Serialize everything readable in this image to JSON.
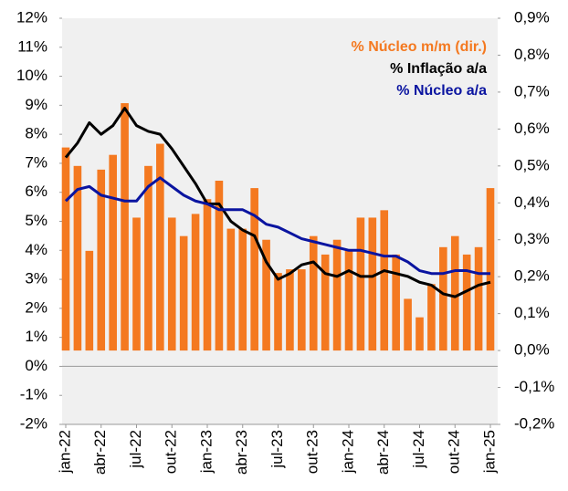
{
  "chart_data": {
    "type": "combo",
    "categories": [
      "jan-22",
      null,
      null,
      "abr-22",
      null,
      null,
      "jul-22",
      null,
      null,
      "out-22",
      null,
      null,
      "jan-23",
      null,
      null,
      "abr-23",
      null,
      null,
      "jul-23",
      null,
      null,
      "out-23",
      null,
      null,
      "jan-24",
      null,
      null,
      "abr-24",
      null,
      null,
      "jul-24",
      null,
      null,
      "out-24",
      null,
      null,
      "jan-25"
    ],
    "series": [
      {
        "name": "% Núcleo m/m (dir.)",
        "type": "bar",
        "axis": "y2",
        "color": "#f47920",
        "values": [
          0.55,
          0.5,
          0.27,
          0.49,
          0.53,
          0.67,
          0.36,
          0.5,
          0.56,
          0.36,
          0.31,
          0.37,
          0.41,
          0.46,
          0.33,
          0.33,
          0.44,
          0.3,
          0.21,
          0.22,
          0.22,
          0.31,
          0.26,
          0.3,
          0.27,
          0.36,
          0.36,
          0.38,
          0.26,
          0.14,
          0.09,
          0.18,
          0.28,
          0.31,
          0.26,
          0.28,
          0.44
        ]
      },
      {
        "name": "% Inflação a/a",
        "type": "line",
        "color": "#000000",
        "values": [
          7.2,
          7.7,
          8.4,
          8.0,
          8.3,
          8.9,
          8.3,
          8.1,
          8.0,
          7.5,
          6.9,
          6.3,
          5.6,
          5.6,
          5.0,
          4.7,
          4.5,
          3.6,
          3.0,
          3.2,
          3.5,
          3.6,
          3.2,
          3.1,
          3.3,
          3.1,
          3.1,
          3.3,
          3.2,
          3.1,
          2.9,
          2.8,
          2.5,
          2.4,
          2.6,
          2.8,
          2.9
        ]
      },
      {
        "name": "% Núcleo a/a",
        "type": "line",
        "color": "#0a14a0",
        "values": [
          5.7,
          6.1,
          6.2,
          5.9,
          5.8,
          5.7,
          5.7,
          6.2,
          6.5,
          6.2,
          5.9,
          5.7,
          5.6,
          5.4,
          5.4,
          5.4,
          5.2,
          4.9,
          4.8,
          4.6,
          4.4,
          4.3,
          4.2,
          4.1,
          4.0,
          4.0,
          3.9,
          3.8,
          3.8,
          3.6,
          3.3,
          3.2,
          3.2,
          3.3,
          3.3,
          3.2,
          3.2
        ]
      }
    ],
    "ylim": [
      -2,
      12
    ],
    "yticks": [
      {
        "value": -2,
        "label": "-2%"
      },
      {
        "value": -1,
        "label": "-1%"
      },
      {
        "value": 0,
        "label": "0%"
      },
      {
        "value": 1,
        "label": "1%"
      },
      {
        "value": 2,
        "label": "2%"
      },
      {
        "value": 3,
        "label": "3%"
      },
      {
        "value": 4,
        "label": "4%"
      },
      {
        "value": 5,
        "label": "5%"
      },
      {
        "value": 6,
        "label": "6%"
      },
      {
        "value": 7,
        "label": "7%"
      },
      {
        "value": 8,
        "label": "8%"
      },
      {
        "value": 9,
        "label": "9%"
      },
      {
        "value": 10,
        "label": "10%"
      },
      {
        "value": 11,
        "label": "11%"
      },
      {
        "value": 12,
        "label": "12%"
      }
    ],
    "y2lim": [
      -0.2,
      0.9
    ],
    "y2ticks": [
      {
        "value": -0.2,
        "label": "-0,2%"
      },
      {
        "value": -0.1,
        "label": "-0,1%"
      },
      {
        "value": 0,
        "label": "0,0%"
      },
      {
        "value": 0.1,
        "label": "0,1%"
      },
      {
        "value": 0.2,
        "label": "0,2%"
      },
      {
        "value": 0.3,
        "label": "0,3%"
      },
      {
        "value": 0.4,
        "label": "0,4%"
      },
      {
        "value": 0.5,
        "label": "0,5%"
      },
      {
        "value": 0.6,
        "label": "0,6%"
      },
      {
        "value": 0.7,
        "label": "0,7%"
      },
      {
        "value": 0.8,
        "label": "0,8%"
      },
      {
        "value": 0.9,
        "label": "0,9%"
      }
    ],
    "grid": false
  }
}
